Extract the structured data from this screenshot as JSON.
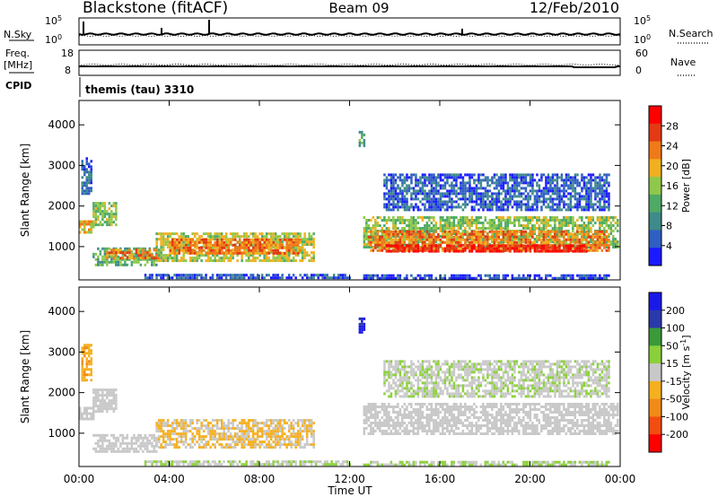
{
  "header": {
    "station": "Blackstone (fitACF)",
    "beam": "Beam 09",
    "date": "12/Feb/2010"
  },
  "aux_panels": {
    "nsky_label": "N.Sky",
    "nsearch_label": "N.Search",
    "freq_label": "Freq.",
    "freq_unit": "[MHz]",
    "nave_label": "Nave",
    "cpid_label": "CPID",
    "cpid_value": "themis (tau) 3310",
    "noise_ticks_left": [
      "10^5",
      "10^0"
    ],
    "noise_ticks_right": [
      "10^5",
      "10^0"
    ],
    "freq_ticks": [
      "18",
      "8"
    ],
    "nave_ticks": [
      "60",
      "0"
    ]
  },
  "time_axis": {
    "label": "Time UT",
    "ticks": [
      "00:00",
      "04:00",
      "08:00",
      "12:00",
      "16:00",
      "20:00",
      "00:00"
    ]
  },
  "chart_data": [
    {
      "type": "heatmap",
      "name": "power",
      "ylabel": "Slant Range [km]",
      "x_range_hours": [
        0,
        24
      ],
      "ylim": [
        180,
        4600
      ],
      "yticks": [
        1000,
        2000,
        3000,
        4000
      ],
      "colorbar": {
        "label": "Power [dB]",
        "ticks": [
          "28",
          "24",
          "20",
          "16",
          "12",
          "8",
          "4"
        ],
        "range": [
          0,
          30
        ],
        "colors": [
          "#1a1aff",
          "#2f5fc2",
          "#3f8a8a",
          "#4faa66",
          "#8fc84a",
          "#f0b020",
          "#f07a18",
          "#e43a14",
          "#ff0000"
        ]
      },
      "echo_regions": [
        {
          "t": [
            0.0,
            0.6
          ],
          "r": [
            1380,
            1650
          ],
          "value": 18
        },
        {
          "t": [
            0.6,
            1.6
          ],
          "r": [
            1550,
            2100
          ],
          "value": 14
        },
        {
          "t": [
            0.1,
            0.5
          ],
          "r": [
            2300,
            3200
          ],
          "value": 6
        },
        {
          "t": [
            0.6,
            3.4
          ],
          "r": [
            550,
            980
          ],
          "value": 12
        },
        {
          "t": [
            1.2,
            3.5
          ],
          "r": [
            700,
            950
          ],
          "value": 22
        },
        {
          "t": [
            3.4,
            10.4
          ],
          "r": [
            680,
            1350
          ],
          "value": 16
        },
        {
          "t": [
            4.0,
            9.8
          ],
          "r": [
            850,
            1200
          ],
          "value": 22
        },
        {
          "t": [
            2.8,
            12.0
          ],
          "r": [
            230,
            330
          ],
          "value": 5
        },
        {
          "t": [
            12.4,
            12.6
          ],
          "r": [
            3500,
            3850
          ],
          "value": 12
        },
        {
          "t": [
            12.6,
            23.9
          ],
          "r": [
            1000,
            1750
          ],
          "value": 14
        },
        {
          "t": [
            12.8,
            23.5
          ],
          "r": [
            900,
            1400
          ],
          "value": 22
        },
        {
          "t": [
            13.5,
            22.5
          ],
          "r": [
            900,
            1050
          ],
          "value": 27
        },
        {
          "t": [
            13.5,
            23.5
          ],
          "r": [
            1900,
            2800
          ],
          "value": 5
        },
        {
          "t": [
            12.6,
            23.5
          ],
          "r": [
            200,
            320
          ],
          "value": 4
        }
      ]
    },
    {
      "type": "heatmap",
      "name": "velocity",
      "ylabel": "Slant Range [km]",
      "x_range_hours": [
        0,
        24
      ],
      "ylim": [
        180,
        4600
      ],
      "yticks": [
        1000,
        2000,
        3000,
        4000
      ],
      "colorbar": {
        "label": "Velocity [m s^-1]",
        "ticks": [
          "200",
          "100",
          "50",
          "15",
          "-15",
          "-50",
          "-100",
          "-200"
        ],
        "range": [
          -250,
          250
        ],
        "colors": [
          "#ff0000",
          "#f24d10",
          "#f28a18",
          "#f5b020",
          "#c8c8c8",
          "#8ad03a",
          "#3a9a3a",
          "#2a3aaa",
          "#1a1ae8"
        ]
      },
      "echo_regions": [
        {
          "t": [
            0.0,
            0.6
          ],
          "r": [
            1380,
            1650
          ],
          "value": 0
        },
        {
          "t": [
            0.6,
            1.6
          ],
          "r": [
            1550,
            2100
          ],
          "value": 0
        },
        {
          "t": [
            0.1,
            0.5
          ],
          "r": [
            2300,
            3200
          ],
          "value": -70
        },
        {
          "t": [
            0.6,
            3.4
          ],
          "r": [
            550,
            980
          ],
          "value": 0
        },
        {
          "t": [
            3.4,
            10.4
          ],
          "r": [
            680,
            1350
          ],
          "value": -30
        },
        {
          "t": [
            2.8,
            12.0
          ],
          "r": [
            230,
            330
          ],
          "value": 25
        },
        {
          "t": [
            12.4,
            12.6
          ],
          "r": [
            3500,
            3850
          ],
          "value": 200
        },
        {
          "t": [
            12.6,
            23.9
          ],
          "r": [
            1000,
            1750
          ],
          "value": 0
        },
        {
          "t": [
            13.5,
            23.5
          ],
          "r": [
            1900,
            2800
          ],
          "value": 20
        },
        {
          "t": [
            12.6,
            23.5
          ],
          "r": [
            200,
            320
          ],
          "value": 30
        }
      ]
    }
  ]
}
